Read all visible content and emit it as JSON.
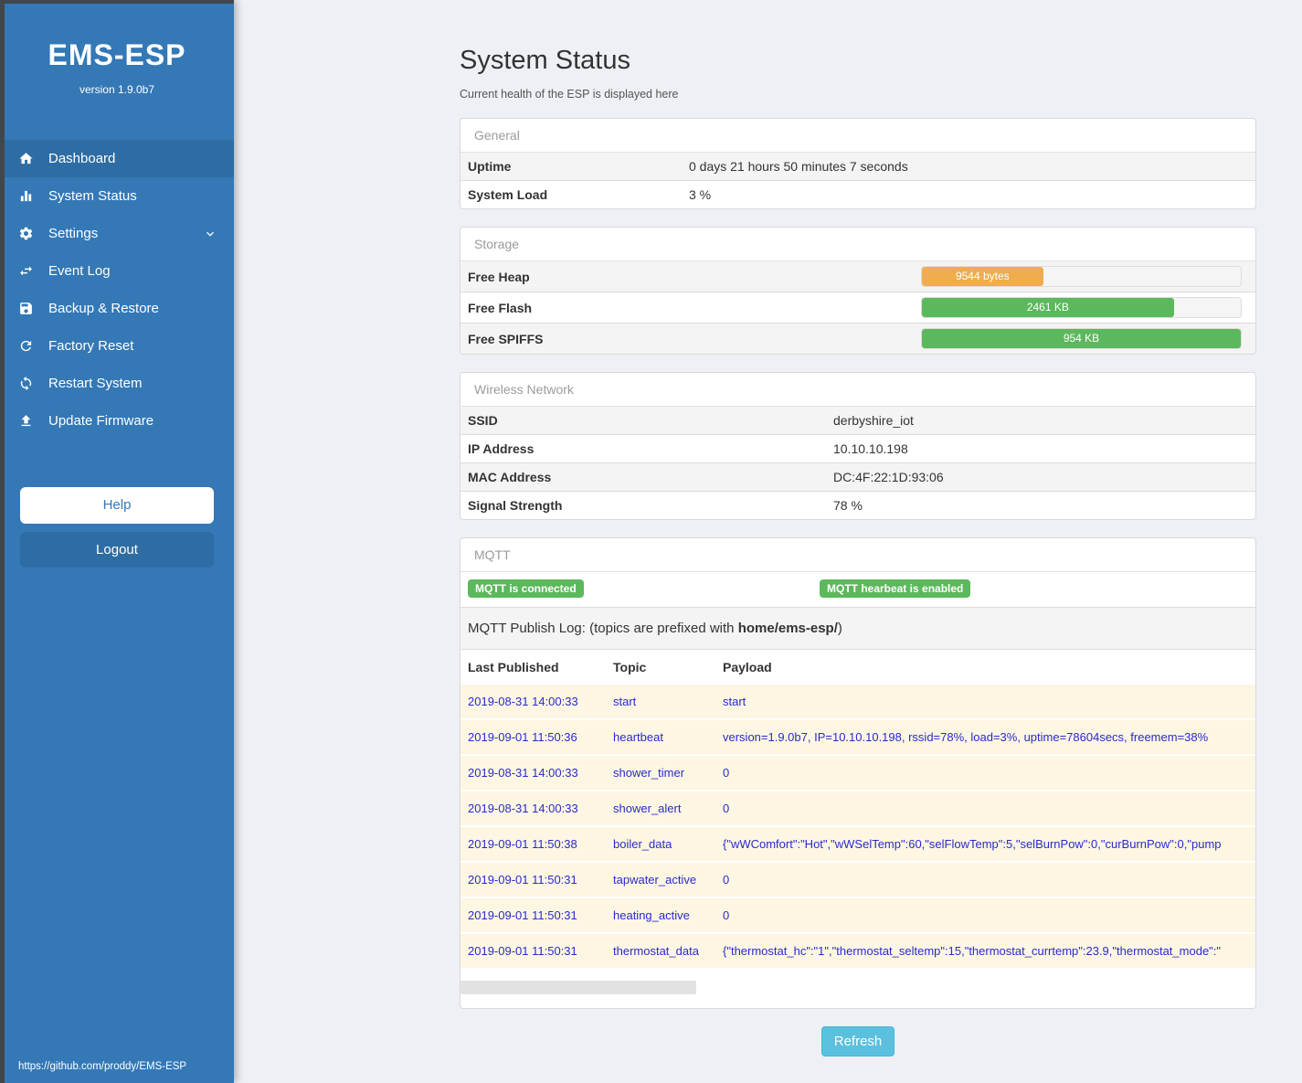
{
  "sidebar": {
    "brand": "EMS-ESP",
    "version": "version 1.9.0b7",
    "items": [
      {
        "label": "Dashboard"
      },
      {
        "label": "System Status"
      },
      {
        "label": "Settings"
      },
      {
        "label": "Event Log"
      },
      {
        "label": "Backup & Restore"
      },
      {
        "label": "Factory Reset"
      },
      {
        "label": "Restart System"
      },
      {
        "label": "Update Firmware"
      }
    ],
    "help_label": "Help",
    "logout_label": "Logout",
    "footer_link": "https://github.com/proddy/EMS-ESP"
  },
  "page": {
    "title": "System Status",
    "subtitle": "Current health of the ESP is displayed here",
    "refresh_label": "Refresh"
  },
  "general": {
    "header": "General",
    "rows": [
      {
        "label": "Uptime",
        "value": "0 days 21 hours 50 minutes 7 seconds"
      },
      {
        "label": "System Load",
        "value": "3 %"
      }
    ]
  },
  "storage": {
    "header": "Storage",
    "rows": [
      {
        "label": "Free Heap",
        "value": "9544 bytes",
        "percent": 38,
        "color": "#f0ad4e"
      },
      {
        "label": "Free Flash",
        "value": "2461 KB",
        "percent": 79,
        "color": "#5cb85c"
      },
      {
        "label": "Free SPIFFS",
        "value": "954 KB",
        "percent": 100,
        "color": "#5cb85c"
      }
    ]
  },
  "wireless": {
    "header": "Wireless Network",
    "rows": [
      {
        "label": "SSID",
        "value": "derbyshire_iot"
      },
      {
        "label": "IP Address",
        "value": "10.10.10.198"
      },
      {
        "label": "MAC Address",
        "value": "DC:4F:22:1D:93:06"
      },
      {
        "label": "Signal Strength",
        "value": "78 %"
      }
    ]
  },
  "mqtt": {
    "header": "MQTT",
    "badge_connected": "MQTT is connected",
    "badge_heartbeat": "MQTT hearbeat is enabled",
    "publish_log_prefix": "MQTT Publish Log: (topics are prefixed with ",
    "publish_log_bold": "home/ems-esp/",
    "publish_log_suffix": ")",
    "table": {
      "headers": [
        "Last Published",
        "Topic",
        "Payload"
      ],
      "rows": [
        [
          "2019-08-31 14:00:33",
          "start",
          "start"
        ],
        [
          "2019-09-01 11:50:36",
          "heartbeat",
          "version=1.9.0b7, IP=10.10.10.198, rssid=78%, load=3%, uptime=78604secs, freemem=38%"
        ],
        [
          "2019-08-31 14:00:33",
          "shower_timer",
          "0"
        ],
        [
          "2019-08-31 14:00:33",
          "shower_alert",
          "0"
        ],
        [
          "2019-09-01 11:50:38",
          "boiler_data",
          "{\"wWComfort\":\"Hot\",\"wWSelTemp\":60,\"selFlowTemp\":5,\"selBurnPow\":0,\"curBurnPow\":0,\"pump"
        ],
        [
          "2019-09-01 11:50:31",
          "tapwater_active",
          "0"
        ],
        [
          "2019-09-01 11:50:31",
          "heating_active",
          "0"
        ],
        [
          "2019-09-01 11:50:31",
          "thermostat_data",
          "{\"thermostat_hc\":\"1\",\"thermostat_seltemp\":15,\"thermostat_currtemp\":23.9,\"thermostat_mode\":\""
        ]
      ]
    }
  },
  "colors": {
    "sidebar_blue": "#3478b6",
    "active_blue": "#2d6da4",
    "success_green": "#5cb85c",
    "warning_orange": "#f0ad4e",
    "info_blue": "#5bc0de",
    "log_row_bg": "#fdf6e3",
    "log_text_blue": "#2a2ace"
  }
}
